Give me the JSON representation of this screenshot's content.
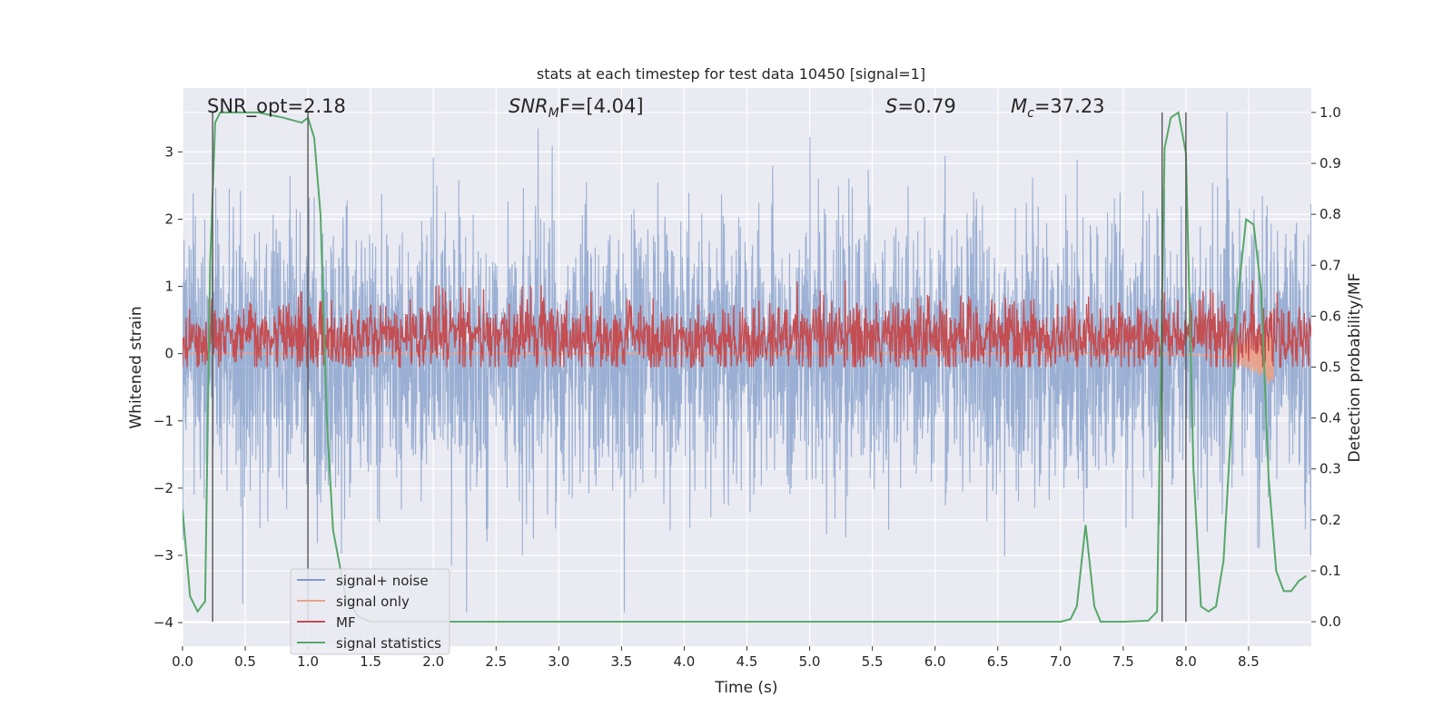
{
  "chart_data": {
    "type": "line",
    "title": "stats at each timestep for test data 10450 [signal=1]",
    "xlabel": "Time (s)",
    "ylabel": "Whitened strain",
    "y2label": "Detection probability/MF",
    "xlim": [
      0,
      9.0
    ],
    "ylim": [
      -4.35,
      3.95
    ],
    "y2lim": [
      -0.048,
      1.048
    ],
    "x_ticks": [
      0.0,
      0.5,
      1.0,
      1.5,
      2.0,
      2.5,
      3.0,
      3.5,
      4.0,
      4.5,
      5.0,
      5.5,
      6.0,
      6.5,
      7.0,
      7.5,
      8.0,
      8.5
    ],
    "x_tick_labels": [
      "0.0",
      "0.5",
      "1.0",
      "1.5",
      "2.0",
      "2.5",
      "3.0",
      "3.5",
      "4.0",
      "4.5",
      "5.0",
      "5.5",
      "6.0",
      "6.5",
      "7.0",
      "7.5",
      "8.0",
      "8.5"
    ],
    "y_ticks": [
      -4,
      -3,
      -2,
      -1,
      0,
      1,
      2,
      3
    ],
    "y_tick_labels": [
      "−4",
      "−3",
      "−2",
      "−1",
      "0",
      "1",
      "2",
      "3"
    ],
    "y2_ticks": [
      0.0,
      0.1,
      0.2,
      0.3,
      0.4,
      0.5,
      0.6,
      0.7,
      0.8,
      0.9,
      1.0
    ],
    "y2_tick_labels": [
      "0.0",
      "0.1",
      "0.2",
      "0.3",
      "0.4",
      "0.5",
      "0.6",
      "0.7",
      "0.8",
      "0.9",
      "1.0"
    ],
    "grid": true,
    "legend_position": "lower-left",
    "annotations": [
      {
        "id": "snr-opt",
        "text": "SNR_opt=2.18"
      },
      {
        "id": "snr-mf",
        "base": "SNR",
        "sub": "M",
        "rest": "F=[4.04]"
      },
      {
        "id": "s-stat",
        "base": "S",
        "rest": "=0.79"
      },
      {
        "id": "mc",
        "base": "M",
        "sub": "c",
        "rest": "=37.23"
      }
    ],
    "vertical_markers": [
      0.24,
      1.0,
      7.81,
      8.0
    ],
    "series": [
      {
        "name": "signal+ noise",
        "color": "#7f9bc8",
        "axis": "left",
        "description": "whitened strain, noise std ~1, x 0 to 9 s",
        "sample_step": 0.0025,
        "noise_sigma": 1.0
      },
      {
        "name": "signal only",
        "color": "#eba28a",
        "axis": "left",
        "x": [
          0.0,
          7.8,
          8.1,
          8.3,
          8.45,
          8.55,
          8.62,
          8.66,
          8.7
        ],
        "y": [
          0.0,
          0.0,
          -0.02,
          -0.05,
          0.1,
          -0.2,
          0.3,
          -0.45,
          0.0
        ]
      },
      {
        "name": "MF",
        "color": "#c44e52",
        "axis": "right",
        "baseline": 0.56,
        "spread": 0.035,
        "peak_max": 0.67
      },
      {
        "name": "signal statistics",
        "color": "#55a868",
        "axis": "right",
        "x": [
          0.0,
          0.06,
          0.12,
          0.18,
          0.22,
          0.26,
          0.3,
          0.36,
          0.45,
          0.6,
          0.8,
          0.95,
          1.0,
          1.05,
          1.1,
          1.15,
          1.2,
          1.3,
          1.4,
          1.5,
          2.0,
          3.0,
          4.0,
          5.0,
          6.0,
          7.0,
          7.08,
          7.13,
          7.2,
          7.27,
          7.32,
          7.5,
          7.7,
          7.77,
          7.83,
          7.88,
          7.94,
          8.0,
          8.06,
          8.12,
          8.18,
          8.24,
          8.3,
          8.36,
          8.42,
          8.48,
          8.54,
          8.6,
          8.66,
          8.72,
          8.78,
          8.84,
          8.9,
          8.96
        ],
        "y": [
          0.22,
          0.05,
          0.02,
          0.04,
          0.7,
          0.98,
          1.0,
          1.0,
          1.0,
          1.0,
          0.99,
          0.98,
          0.99,
          0.95,
          0.8,
          0.4,
          0.18,
          0.05,
          0.01,
          0.0,
          0.0,
          0.0,
          0.0,
          0.0,
          0.0,
          0.0,
          0.005,
          0.03,
          0.19,
          0.03,
          0.0,
          0.0,
          0.002,
          0.02,
          0.93,
          0.99,
          1.0,
          0.92,
          0.3,
          0.03,
          0.02,
          0.03,
          0.12,
          0.38,
          0.65,
          0.79,
          0.78,
          0.65,
          0.28,
          0.1,
          0.06,
          0.06,
          0.08,
          0.09
        ]
      }
    ]
  }
}
